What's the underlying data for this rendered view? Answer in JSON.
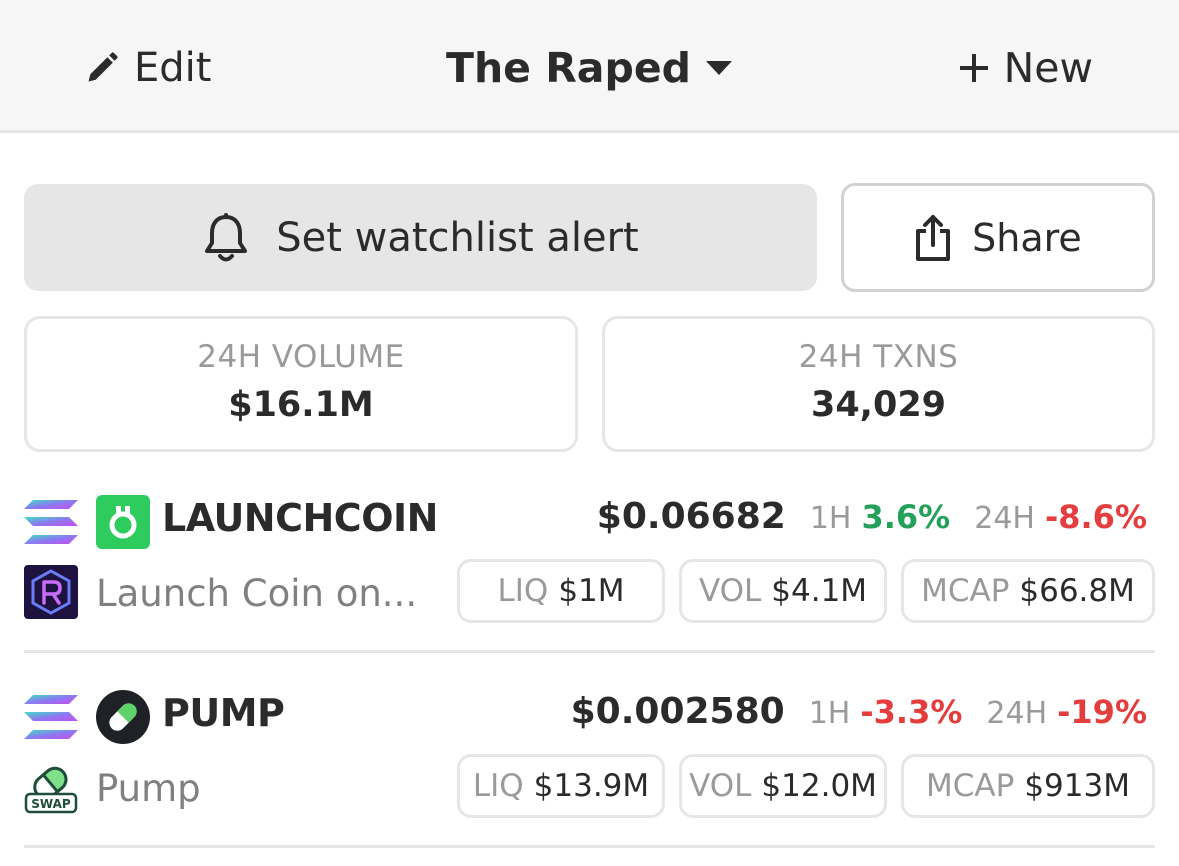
{
  "header": {
    "edit_label": "Edit",
    "title": "The Raped",
    "new_label": "New"
  },
  "actions": {
    "alert_label": "Set watchlist alert",
    "share_label": "Share"
  },
  "stats": {
    "volume_label": "24H VOLUME",
    "volume_value": "$16.1M",
    "txns_label": "24H TXNS",
    "txns_value": "34,029"
  },
  "tokens": [
    {
      "symbol": "LAUNCHCOIN",
      "name": "Launch Coin on...",
      "price": "$0.06682",
      "h1_label": "1H",
      "h1_change": "3.6%",
      "h24_label": "24H",
      "h24_change": "-8.6%",
      "liq_label": "LIQ",
      "liq_value": "$1M",
      "vol_label": "VOL",
      "vol_value": "$4.1M",
      "mcap_label": "MCAP",
      "mcap_value": "$66.8M"
    },
    {
      "symbol": "PUMP",
      "name": "Pump",
      "price": "$0.002580",
      "h1_label": "1H",
      "h1_change": "-3.3%",
      "h24_label": "24H",
      "h24_change": "-19%",
      "liq_label": "LIQ",
      "liq_value": "$13.9M",
      "vol_label": "VOL",
      "vol_value": "$12.0M",
      "mcap_label": "MCAP",
      "mcap_value": "$913M"
    }
  ],
  "icons": {
    "chain": "solana-icon",
    "dex1": "raydium-icon",
    "dex2": "pumpswap-icon"
  },
  "colors": {
    "positive": "#23a05a",
    "negative": "#e43d3d",
    "launchcoin_brand": "#2ecc5e"
  },
  "dex2_badge": "SWAP"
}
